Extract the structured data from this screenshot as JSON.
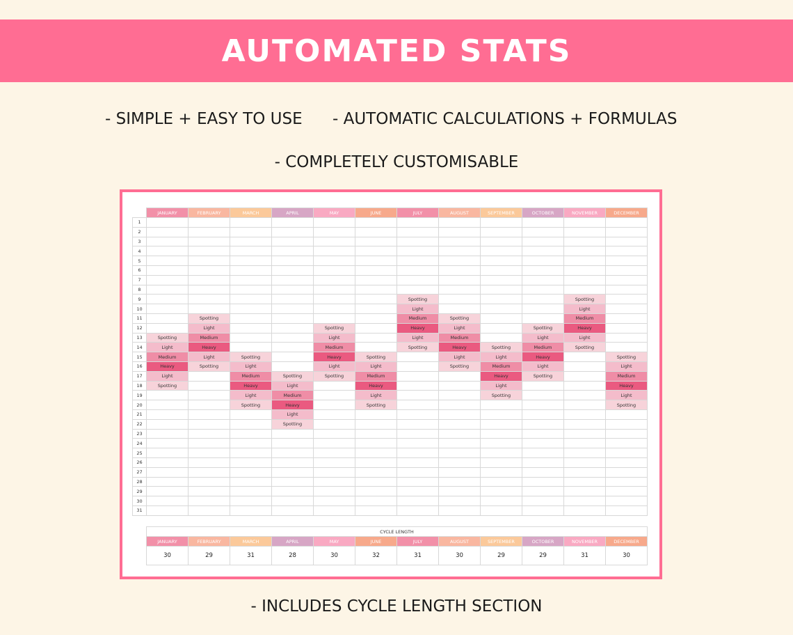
{
  "banner": {
    "title": "AUTOMATED STATS"
  },
  "features": {
    "f1": "- SIMPLE + EASY TO USE",
    "f2": "- AUTOMATIC CALCULATIONS + FORMULAS",
    "f3": "- COMPLETELY CUSTOMISABLE",
    "f4": "- INCLUDES CYCLE LENGTH SECTION"
  },
  "months": [
    {
      "name": "JANUARY",
      "color": "#f290a8"
    },
    {
      "name": "FEBRUARY",
      "color": "#f9b7a0"
    },
    {
      "name": "MARCH",
      "color": "#fbc99a"
    },
    {
      "name": "APRIL",
      "color": "#d7a6c5"
    },
    {
      "name": "MAY",
      "color": "#f9a9c2"
    },
    {
      "name": "JUNE",
      "color": "#f7a98b"
    },
    {
      "name": "JULY",
      "color": "#f290a8"
    },
    {
      "name": "AUGUST",
      "color": "#f9b7a0"
    },
    {
      "name": "SEPTEMBER",
      "color": "#fbc99a"
    },
    {
      "name": "OCTOBER",
      "color": "#d7a6c5"
    },
    {
      "name": "NOVEMBER",
      "color": "#f9a9c2"
    },
    {
      "name": "DECEMBER",
      "color": "#f7a98b"
    }
  ],
  "days": [
    1,
    2,
    3,
    4,
    5,
    6,
    7,
    8,
    9,
    10,
    11,
    12,
    13,
    14,
    15,
    16,
    17,
    18,
    19,
    20,
    21,
    22,
    23,
    24,
    25,
    26,
    27,
    28,
    29,
    30,
    31
  ],
  "flow": {
    "JANUARY": {
      "13": "Spotting",
      "14": "Light",
      "15": "Medium",
      "16": "Heavy",
      "17": "Light",
      "18": "Spotting"
    },
    "FEBRUARY": {
      "11": "Spotting",
      "12": "Light",
      "13": "Medium",
      "14": "Heavy",
      "15": "Light",
      "16": "Spotting"
    },
    "MARCH": {
      "15": "Spotting",
      "16": "Light",
      "17": "Medium",
      "18": "Heavy",
      "19": "Light",
      "20": "Spotting"
    },
    "APRIL": {
      "17": "Spotting",
      "18": "Light",
      "19": "Medium",
      "20": "Heavy",
      "21": "Light",
      "22": "Spotting"
    },
    "MAY": {
      "12": "Spotting",
      "13": "Light",
      "14": "Medium",
      "15": "Heavy",
      "16": "Light",
      "17": "Spotting"
    },
    "JUNE": {
      "15": "Spotting",
      "16": "Light",
      "17": "Medium",
      "18": "Heavy",
      "19": "Light",
      "20": "Spotting"
    },
    "JULY": {
      "9": "Spotting",
      "10": "Light",
      "11": "Medium",
      "12": "Heavy",
      "13": "Light",
      "14": "Spotting"
    },
    "AUGUST": {
      "11": "Spotting",
      "12": "Light",
      "13": "Medium",
      "14": "Heavy",
      "15": "Light",
      "16": "Spotting"
    },
    "SEPTEMBER": {
      "14": "Spotting",
      "15": "Light",
      "16": "Medium",
      "17": "Heavy",
      "18": "Light",
      "19": "Spotting"
    },
    "OCTOBER": {
      "12": "Spotting",
      "13": "Light",
      "14": "Medium",
      "15": "Heavy",
      "16": "Light",
      "17": "Spotting"
    },
    "NOVEMBER": {
      "9": "Spotting",
      "10": "Light",
      "11": "Medium",
      "12": "Heavy",
      "13": "Light",
      "14": "Spotting"
    },
    "DECEMBER": {
      "15": "Spotting",
      "16": "Light",
      "17": "Medium",
      "18": "Heavy",
      "19": "Light",
      "20": "Spotting"
    }
  },
  "flow_colors": {
    "Spotting": "#f7d3da",
    "Light": "#f4bccb",
    "Medium": "#ef8da6",
    "Heavy": "#ea5a80"
  },
  "cycle": {
    "title": "CYCLE LENGTH",
    "values": [
      30,
      29,
      31,
      28,
      30,
      32,
      31,
      30,
      29,
      29,
      31,
      30
    ]
  },
  "colors": {
    "banner": "#ff6d93",
    "background": "#fdf5e6",
    "frame": "#ff6d93"
  }
}
